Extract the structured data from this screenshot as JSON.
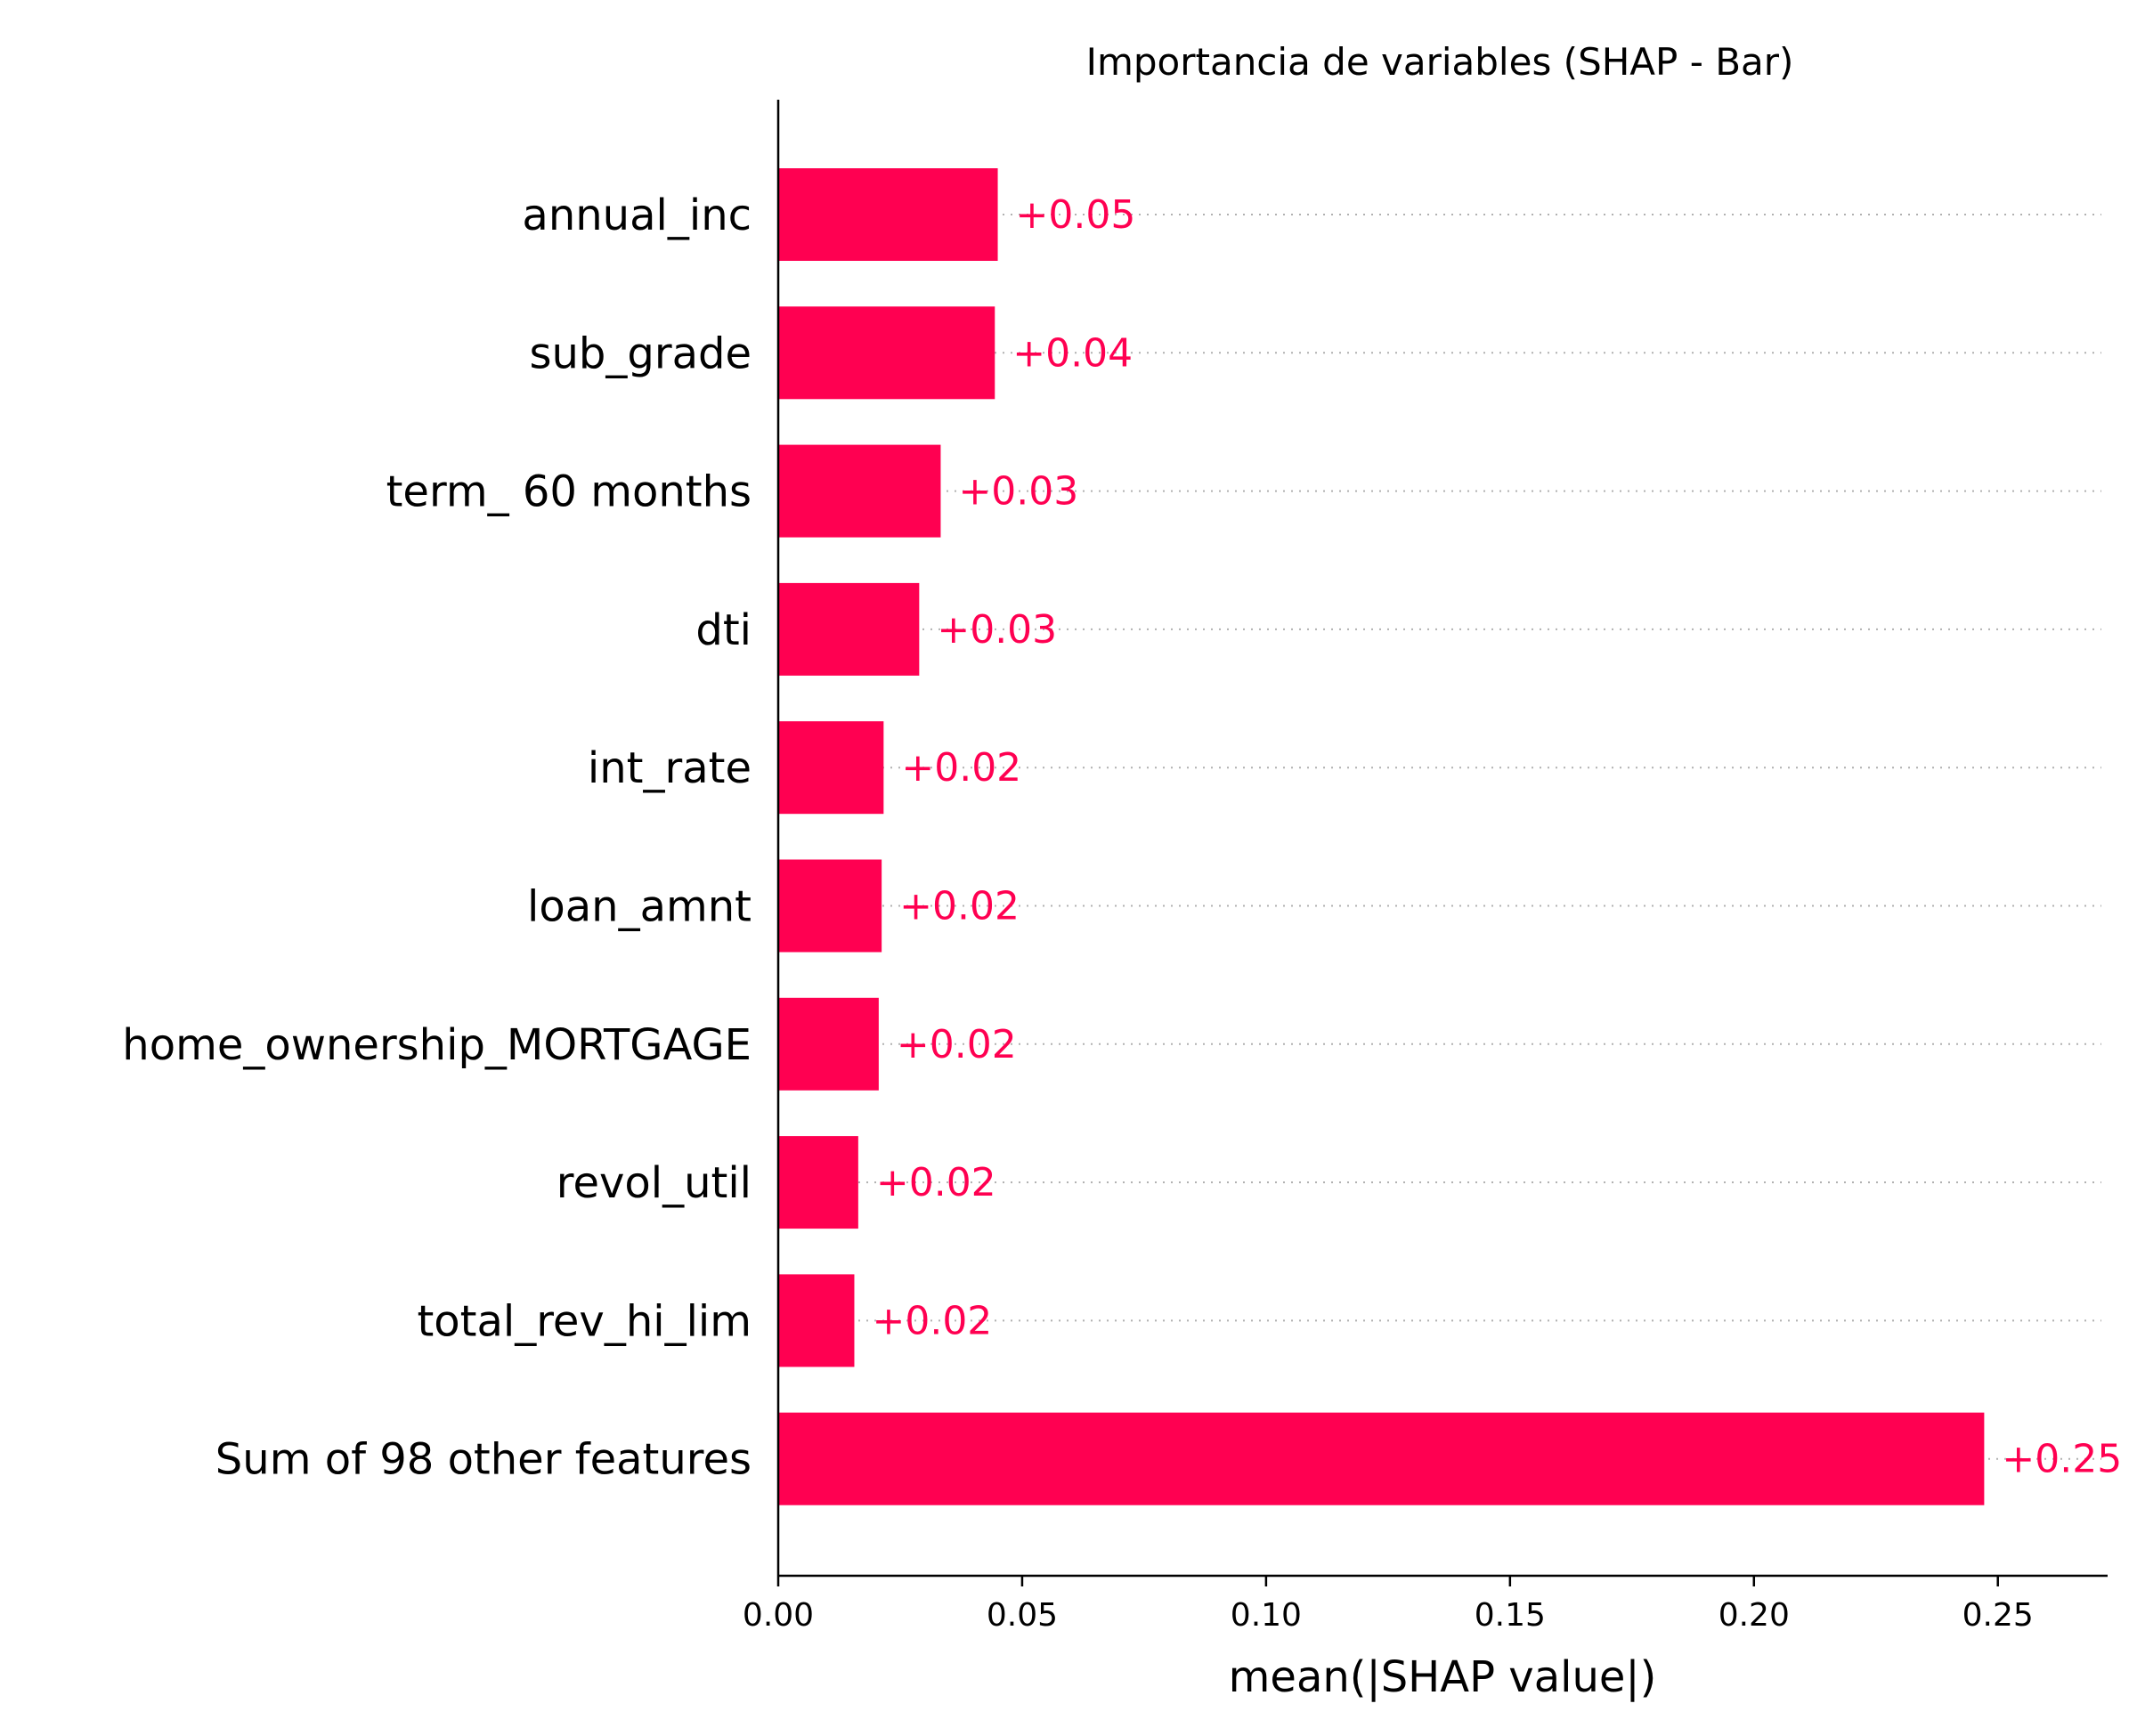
{
  "chart_data": {
    "type": "bar",
    "orientation": "horizontal",
    "title": "Importancia de variables (SHAP - Bar)",
    "xlabel": "mean(|SHAP value|)",
    "ylabel": "",
    "xlim": [
      0,
      0.2725
    ],
    "xticks": [
      0.0,
      0.05,
      0.1,
      0.15,
      0.2,
      0.25
    ],
    "xtick_labels": [
      "0.00",
      "0.05",
      "0.10",
      "0.15",
      "0.20",
      "0.25"
    ],
    "categories": [
      "annual_inc",
      "sub_grade",
      "term_ 60 months",
      "dti",
      "int_rate",
      "loan_amnt",
      "home_ownership_MORTGAGE",
      "revol_util",
      "total_rev_hi_lim",
      "Sum of 98 other features"
    ],
    "values": [
      0.045,
      0.0444,
      0.0333,
      0.0289,
      0.0216,
      0.0212,
      0.0206,
      0.0164,
      0.0156,
      0.2472
    ],
    "value_labels": [
      "+0.05",
      "+0.04",
      "+0.03",
      "+0.03",
      "+0.02",
      "+0.02",
      "+0.02",
      "+0.02",
      "+0.02",
      "+0.25"
    ],
    "bar_color": "#ff0051",
    "grid": "dotted horizontal guides per row",
    "legend": "none"
  }
}
